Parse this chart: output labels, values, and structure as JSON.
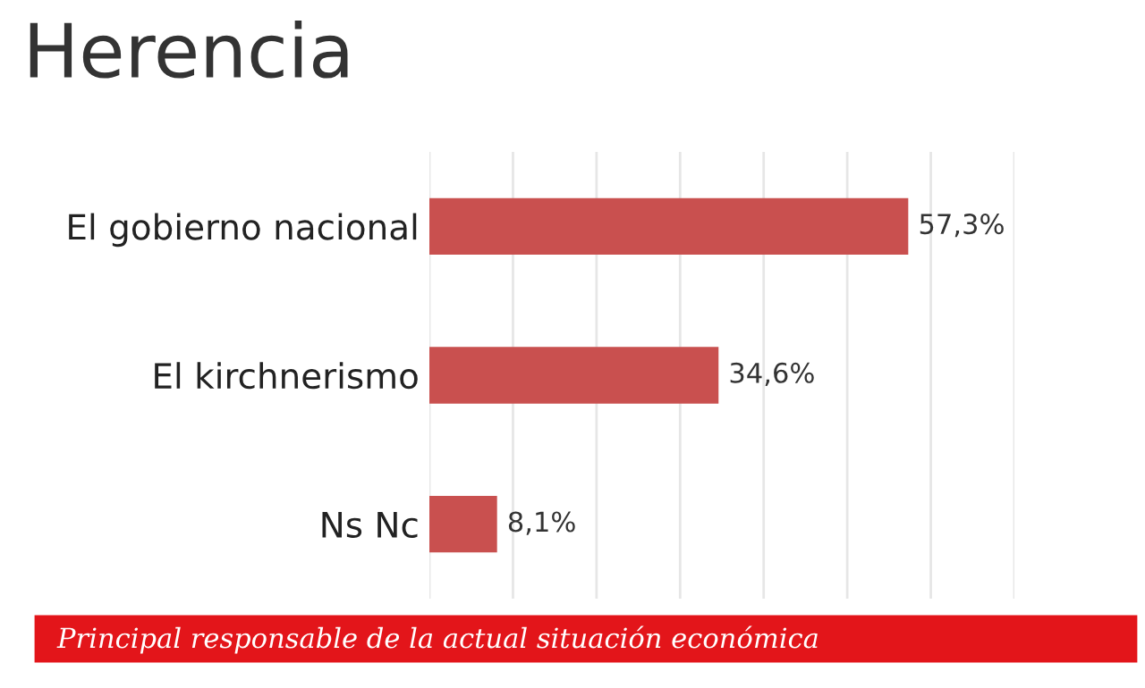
{
  "chart_data": {
    "type": "bar",
    "orientation": "horizontal",
    "title": "Herencia",
    "categories": [
      "El gobierno nacional",
      "El kirchnerismo",
      "Ns Nc"
    ],
    "values": [
      57.3,
      34.6,
      8.1
    ],
    "color": "#c9504f",
    "value_labels": [
      "57,3%",
      "34,6%",
      "8,1%"
    ],
    "xlim": [
      0,
      70
    ],
    "xticks": [
      {
        "value": 0,
        "label": null
      },
      {
        "value": 10,
        "label": null
      },
      {
        "value": 20,
        "label": null
      },
      {
        "value": 30,
        "label": null
      },
      {
        "value": 40,
        "label": null
      },
      {
        "value": 50,
        "label": null
      },
      {
        "value": 60,
        "label": null
      },
      {
        "value": 70,
        "label": null
      }
    ],
    "grid": "x",
    "annotations": [
      "Principal responsable de la actual situación económica"
    ]
  }
}
